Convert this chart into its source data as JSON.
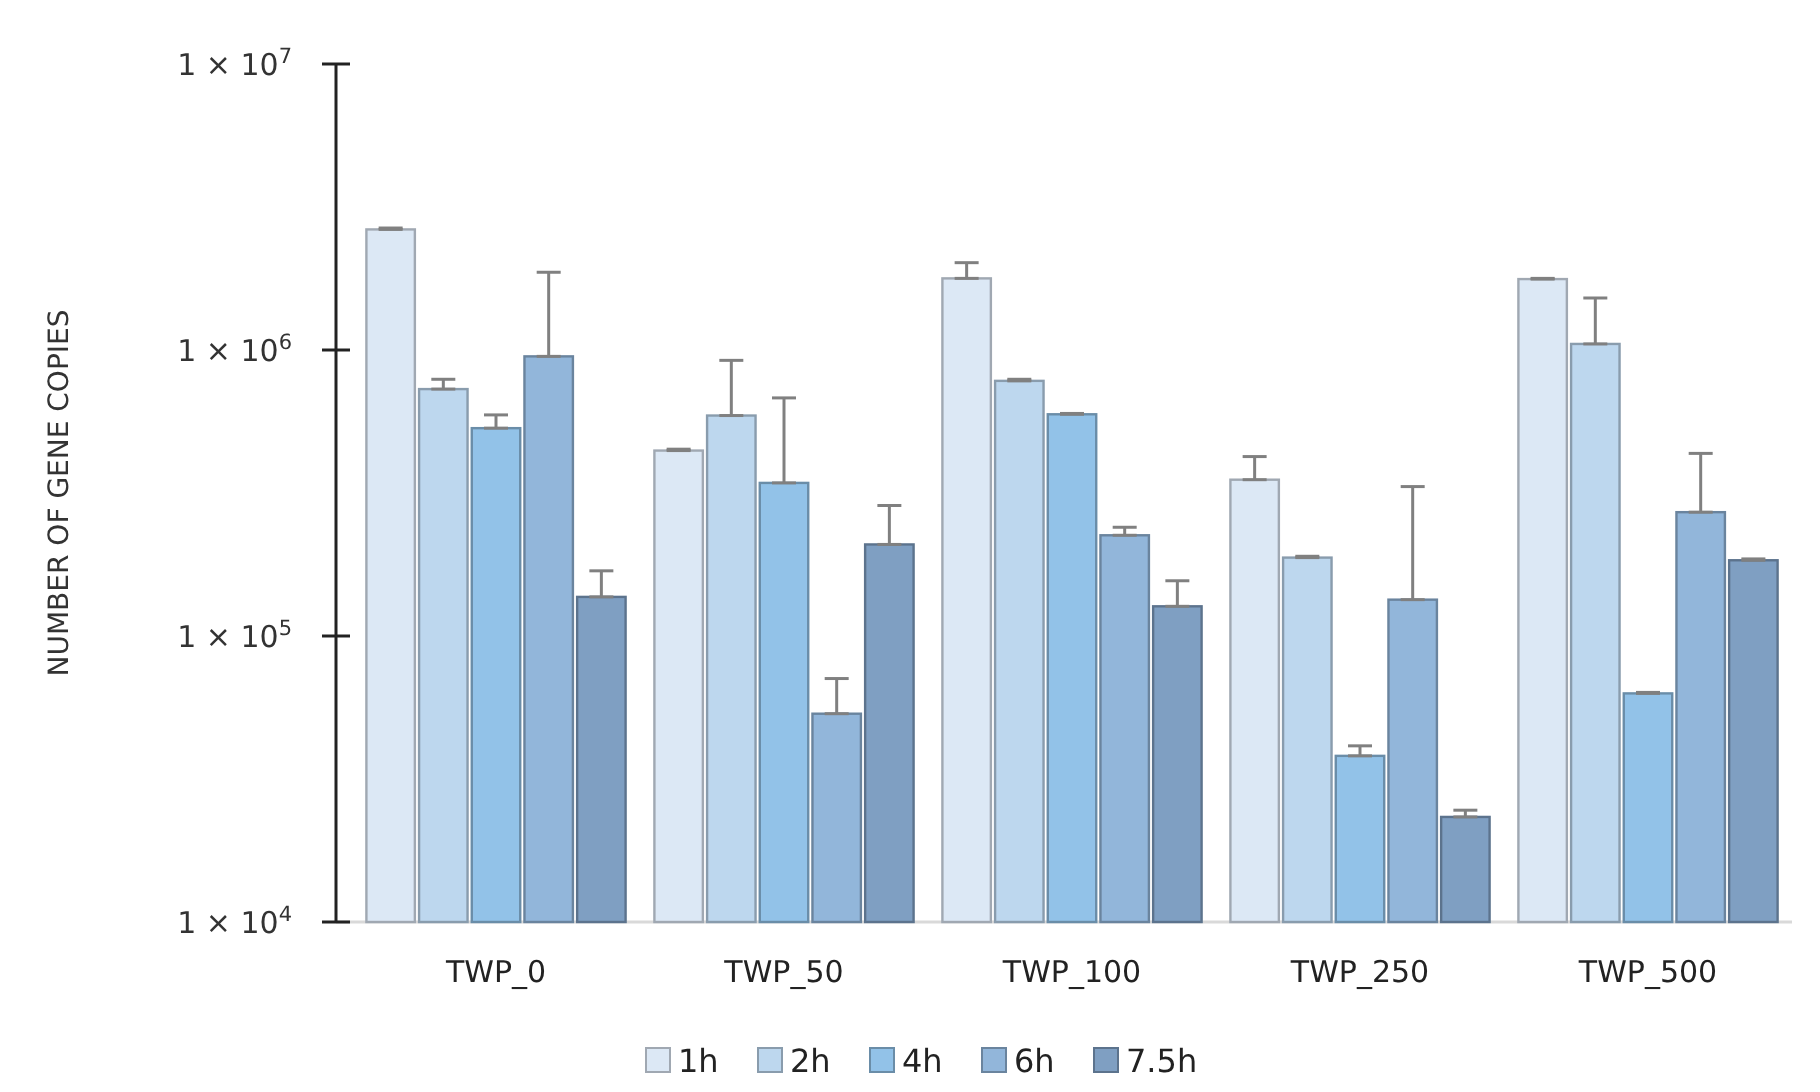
{
  "chart_data": {
    "type": "bar",
    "ylabel": "NUMBER OF GENE COPIES",
    "log": true,
    "grid": false,
    "legend": "bottom",
    "categories": [
      "TWP_0",
      "TWP_50",
      "TWP_100",
      "TWP_250",
      "TWP_500"
    ],
    "ylim": [
      10000,
      10000000
    ],
    "yticks": [
      {
        "value": 10000,
        "label": "1 × 10$^{4}$"
      },
      {
        "value": 100000,
        "label": "1 × 10$^{5}$"
      },
      {
        "value": 1000000,
        "label": "1 × 10$^{6}$"
      },
      {
        "value": 10000000,
        "label": "1 × 10$^{7}$"
      }
    ],
    "series": [
      {
        "name": "1h",
        "color": "#dce8f5",
        "values": [
          2640000,
          445000,
          1780000,
          352000,
          1770000
        ],
        "errors": [
          [
            2640000,
            2670000
          ],
          [
            445000,
            450000
          ],
          [
            1780000,
            2020000
          ],
          [
            352000,
            424000
          ],
          [
            1770000,
            1780000
          ]
        ]
      },
      {
        "name": "2h",
        "color": "#bdd7ee",
        "values": [
          730000,
          590000,
          780000,
          188000,
          1050000
        ],
        "errors": [
          [
            730000,
            790000
          ],
          [
            590000,
            920000
          ],
          [
            780000,
            790000
          ],
          [
            188000,
            190000
          ],
          [
            1050000,
            1520000
          ]
        ]
      },
      {
        "name": "4h",
        "color": "#92c2e8",
        "values": [
          533000,
          343000,
          596000,
          38100,
          63000
        ],
        "errors": [
          [
            533000,
            593000
          ],
          [
            343000,
            680000
          ],
          [
            596000,
            600000
          ],
          [
            38100,
            41300
          ],
          [
            63000,
            63500
          ]
        ]
      },
      {
        "name": "6h",
        "color": "#92b6da",
        "values": [
          950000,
          53500,
          225000,
          134000,
          271000
        ],
        "errors": [
          [
            950000,
            1870000
          ],
          [
            53500,
            71000
          ],
          [
            225000,
            240000
          ],
          [
            134000,
            333000
          ],
          [
            271000,
            435000
          ]
        ]
      },
      {
        "name": "7.5h",
        "color": "#7f9fc2",
        "values": [
          137000,
          209000,
          127000,
          23300,
          184000
        ],
        "errors": [
          [
            137000,
            169000
          ],
          [
            209000,
            286000
          ],
          [
            127000,
            156000
          ],
          [
            23300,
            24600
          ],
          [
            184000,
            186000
          ]
        ]
      }
    ]
  }
}
